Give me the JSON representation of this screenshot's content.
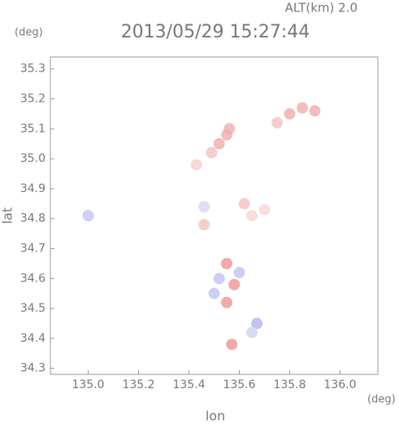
{
  "chart_data": {
    "type": "scatter",
    "title": "2013/05/29 15:27:44",
    "subtitle": "ALT(km) 2.0",
    "x_label": "lon",
    "y_label": "lat",
    "x_unit": "(deg)",
    "y_unit": "(deg)",
    "xlim": [
      134.85,
      136.15
    ],
    "ylim": [
      34.28,
      35.34
    ],
    "xticks": [
      {
        "value": 135,
        "label": "135.0"
      },
      {
        "value": 135.2,
        "label": "135.2"
      },
      {
        "value": 135.4,
        "label": "135.4"
      },
      {
        "value": 135.6,
        "label": "135.6"
      },
      {
        "value": 135.8,
        "label": "135.8"
      },
      {
        "value": 136,
        "label": "136.0"
      }
    ],
    "yticks": [
      {
        "value": 34.3,
        "label": "34.3"
      },
      {
        "value": 34.4,
        "label": "34.4"
      },
      {
        "value": 34.5,
        "label": "34.5"
      },
      {
        "value": 34.6,
        "label": "34.6"
      },
      {
        "value": 34.7,
        "label": "34.7"
      },
      {
        "value": 34.8,
        "label": "34.8"
      },
      {
        "value": 34.9,
        "label": "34.9"
      },
      {
        "value": 35,
        "label": "35.0"
      },
      {
        "value": 35.1,
        "label": "35.1"
      },
      {
        "value": 35.2,
        "label": "35.2"
      },
      {
        "value": 35.3,
        "label": "35.3"
      }
    ],
    "x": [
      135.0,
      135.55,
      135.52,
      135.56,
      135.49,
      135.43,
      135.8,
      135.85,
      135.9,
      135.75,
      135.65,
      135.7,
      135.62,
      135.46,
      135.46,
      135.55,
      135.52,
      135.58,
      135.55,
      135.5,
      135.6,
      135.67,
      135.65,
      135.57
    ],
    "y": [
      34.81,
      35.08,
      35.05,
      35.1,
      35.02,
      34.98,
      35.15,
      35.17,
      35.16,
      35.12,
      34.81,
      34.83,
      34.85,
      34.84,
      34.78,
      34.65,
      34.6,
      34.58,
      34.52,
      34.55,
      34.62,
      34.45,
      34.42,
      34.38
    ],
    "point_colors": [
      "#c8c8f4",
      "#f2b0b0",
      "#f2b0b0",
      "#f2b0b0",
      "#f5c4c4",
      "#f7d0d0",
      "#f2b0b0",
      "#f2b0b0",
      "#f2b0b0",
      "#f5c4c4",
      "#f8d8d8",
      "#f8d8d8",
      "#f5c4c4",
      "#d8d8f4",
      "#f5c4c4",
      "#ee9a9a",
      "#c4c4f4",
      "#ee9a9a",
      "#ee9a9a",
      "#c4c4f4",
      "#c4c4f4",
      "#b8b8f0",
      "#d4d4f4",
      "#ee9a9a"
    ]
  }
}
